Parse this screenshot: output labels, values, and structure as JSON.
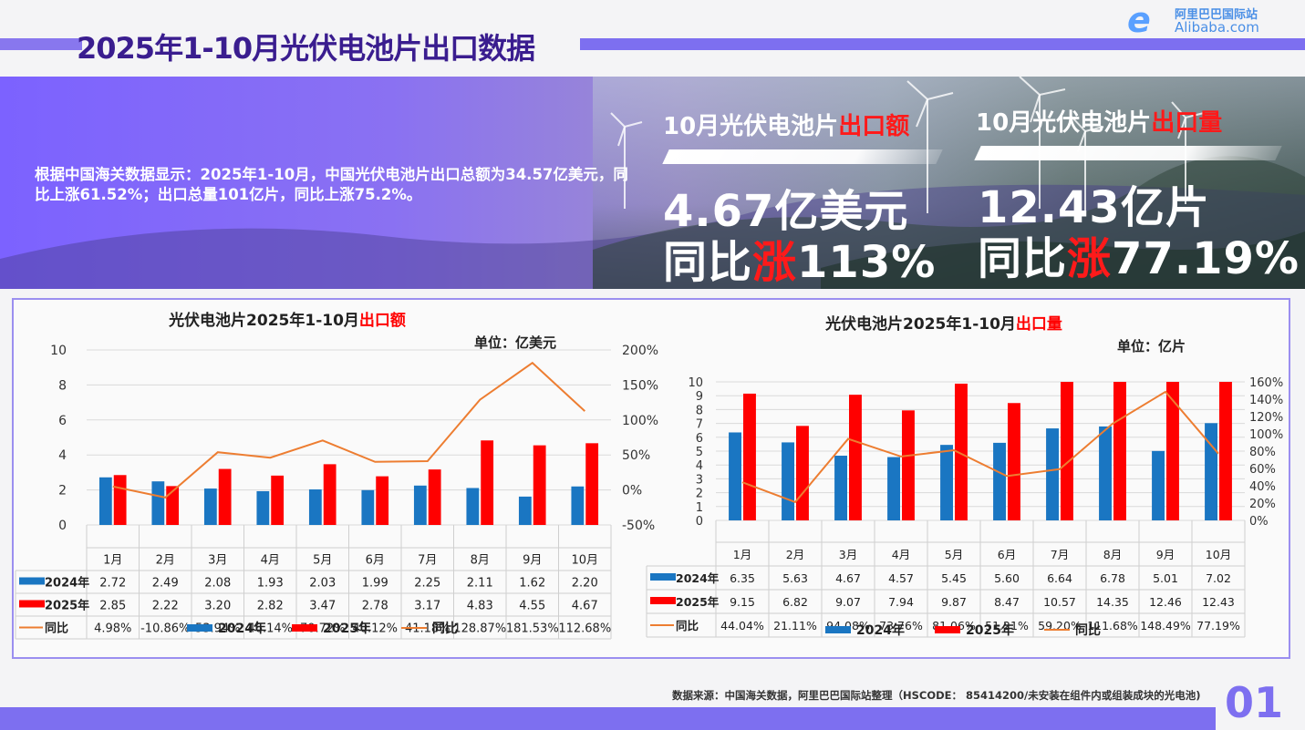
{
  "header": {
    "title": "2025年1-10月光伏电池片出口数据",
    "logo_cn": "阿里巴巴国际站",
    "logo_en": "Alibaba.com"
  },
  "banner": {
    "intro": "根据中国海关数据显示：2025年1-10月，中国光伏电池片出口总额为34.57亿美元，同比上涨61.52%；出口总量101亿片，同比上涨75.2%。",
    "kpi_value": {
      "head_prefix": "10月光伏电池片",
      "head_highlight": "出口额",
      "amount": "4.67亿美元",
      "yoy_prefix": "同比",
      "yoy_highlight": "涨",
      "yoy_value": "113%"
    },
    "kpi_volume": {
      "head_prefix": "10月光伏电池片",
      "head_highlight": "出口量",
      "amount": "12.43亿片",
      "yoy_prefix": "同比",
      "yoy_highlight": "涨",
      "yoy_value": "77.19%"
    }
  },
  "footer": {
    "source": "数据来源：中国海关数据，阿里巴巴国际站整理（HSCODE： 85414200/未安装在组件内或组装成块的光电池)",
    "page_number": "01"
  },
  "colors": {
    "series_2024": "#1a76c2",
    "series_2025": "#ff0000",
    "yoy_line": "#ed7d31",
    "accent": "#7d6ff0"
  },
  "chart_data": [
    {
      "type": "bar",
      "title_prefix": "光伏电池片2025年1-10月",
      "title_highlight": "出口额",
      "unit": "单位：亿美元",
      "categories": [
        "1月",
        "2月",
        "3月",
        "4月",
        "5月",
        "6月",
        "7月",
        "8月",
        "9月",
        "10月"
      ],
      "ylim": [
        0,
        10
      ],
      "yticks": [
        "0",
        "2",
        "4",
        "6",
        "8",
        "10"
      ],
      "y2lim": [
        -50,
        200
      ],
      "y2ticks": [
        "-50%",
        "0%",
        "50%",
        "100%",
        "150%",
        "200%"
      ],
      "series": [
        {
          "name": "2024年",
          "values": [
            2.72,
            2.49,
            2.08,
            1.93,
            2.03,
            1.99,
            2.25,
            2.11,
            1.62,
            2.2
          ],
          "labels": [
            "2.72",
            "2.49",
            "2.08",
            "1.93",
            "2.03",
            "1.99",
            "2.25",
            "2.11",
            "1.62",
            "2.20"
          ]
        },
        {
          "name": "2025年",
          "values": [
            2.85,
            2.22,
            3.2,
            2.82,
            3.47,
            2.78,
            3.17,
            4.83,
            4.55,
            4.67
          ],
          "labels": [
            "2.85",
            "2.22",
            "3.20",
            "2.82",
            "3.47",
            "2.78",
            "3.17",
            "4.83",
            "4.55",
            "4.67"
          ]
        },
        {
          "name": "同比",
          "type": "line",
          "axis": "secondary",
          "values": [
            4.98,
            -10.86,
            53.94,
            46.14,
            70.72,
            40.12,
            41.18,
            128.87,
            181.53,
            112.68
          ],
          "labels": [
            "4.98%",
            "-10.86%",
            "53.94%",
            "46.14%",
            "70.72%",
            "40.12%",
            "41.18%",
            "128.87%",
            "181.53%",
            "112.68%"
          ]
        }
      ],
      "legend": [
        "2024年",
        "2025年",
        "同比"
      ],
      "legend_position": "bottom"
    },
    {
      "type": "bar",
      "title_prefix": "光伏电池片2025年1-10月",
      "title_highlight": "出口量",
      "unit": "单位：亿片",
      "categories": [
        "1月",
        "2月",
        "3月",
        "4月",
        "5月",
        "6月",
        "7月",
        "8月",
        "9月",
        "10月"
      ],
      "ylim": [
        0,
        10
      ],
      "yticks": [
        "0",
        "1",
        "2",
        "3",
        "4",
        "5",
        "6",
        "7",
        "8",
        "9",
        "10"
      ],
      "y2lim": [
        0,
        160
      ],
      "y2ticks": [
        "0%",
        "20%",
        "40%",
        "60%",
        "80%",
        "100%",
        "120%",
        "140%",
        "160%"
      ],
      "series": [
        {
          "name": "2024年",
          "values": [
            6.35,
            5.63,
            4.67,
            4.57,
            5.45,
            5.6,
            6.64,
            6.78,
            5.01,
            7.02
          ],
          "labels": [
            "6.35",
            "5.63",
            "4.67",
            "4.57",
            "5.45",
            "5.60",
            "6.64",
            "6.78",
            "5.01",
            "7.02"
          ]
        },
        {
          "name": "2025年",
          "values": [
            9.15,
            6.82,
            9.07,
            7.94,
            9.87,
            8.47,
            10.57,
            14.35,
            12.46,
            12.43
          ],
          "labels": [
            "9.15",
            "6.82",
            "9.07",
            "7.94",
            "9.87",
            "8.47",
            "10.57",
            "14.35",
            "12.46",
            "12.43"
          ]
        },
        {
          "name": "同比",
          "type": "line",
          "axis": "secondary",
          "values": [
            44.04,
            21.11,
            94.08,
            73.76,
            81.06,
            51.21,
            59.2,
            111.68,
            148.49,
            77.19
          ],
          "labels": [
            "44.04%",
            "21.11%",
            "94.08%",
            "73.76%",
            "81.06%",
            "51.21%",
            "59.20%",
            "111.68%",
            "148.49%",
            "77.19%"
          ]
        }
      ],
      "legend": [
        "2024年",
        "2025年",
        "同比"
      ],
      "legend_position": "bottom"
    }
  ]
}
